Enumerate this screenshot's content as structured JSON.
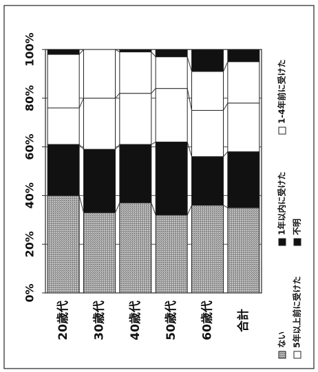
{
  "chart_data": {
    "type": "bar",
    "stacked": true,
    "orientation": "horizontal",
    "rotated": "90deg-ccw",
    "categories": [
      "20歳代",
      "30歳代",
      "40歳代",
      "50歳代",
      "60歳代",
      "合計"
    ],
    "series": [
      {
        "name": "ない",
        "values": [
          40,
          33,
          37,
          32,
          36,
          35
        ],
        "color": "#9a9a9a"
      },
      {
        "name": "1年以内に受けた",
        "values": [
          21,
          26,
          24,
          30,
          20,
          23
        ],
        "color": "#111111"
      },
      {
        "name": "1-4年前に受けた",
        "values": [
          15,
          21,
          21,
          22,
          19,
          20
        ],
        "color": "#ffffff"
      },
      {
        "name": "5年以上前に受けた",
        "values": [
          22,
          20,
          17,
          13,
          16,
          17
        ],
        "color": "#ffffff"
      },
      {
        "name": "不明",
        "values": [
          2,
          0,
          1,
          3,
          9,
          5
        ],
        "color": "#111111"
      }
    ],
    "axis": {
      "ticks": [
        "0%",
        "20%",
        "40%",
        "60%",
        "80%",
        "100%"
      ],
      "min": 0,
      "max": 100
    },
    "grid": true,
    "legend_position": "bottom"
  }
}
